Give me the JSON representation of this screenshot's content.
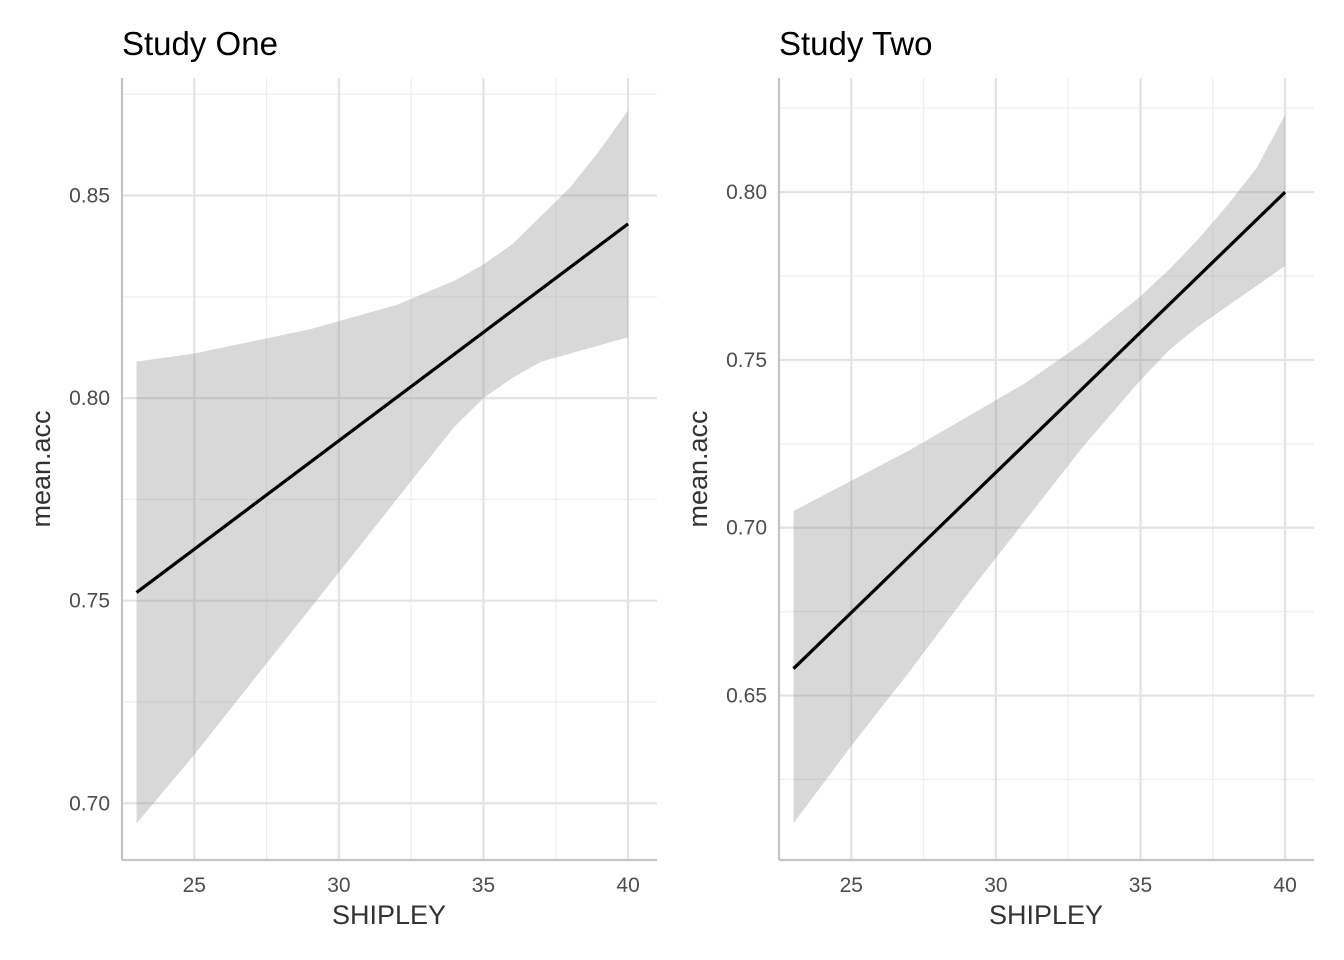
{
  "chart_data": [
    {
      "type": "line",
      "title": "Study One",
      "xlabel": "SHIPLEY",
      "ylabel": "mean.acc",
      "xlim": [
        22.5,
        41
      ],
      "ylim": [
        0.686,
        0.879
      ],
      "x_ticks": [
        25,
        30,
        35,
        40
      ],
      "y_ticks": [
        0.7,
        0.75,
        0.8,
        0.85
      ],
      "x_tick_labels": [
        "25",
        "30",
        "35",
        "40"
      ],
      "y_tick_labels": [
        "0.70",
        "0.75",
        "0.80",
        "0.85"
      ],
      "grid": true,
      "colors": {
        "line": "#000000",
        "ribbon": "#999999"
      },
      "series": [
        {
          "fit": {
            "x": [
              23,
              40
            ],
            "y": [
              0.752,
              0.843
            ]
          },
          "ribbon": {
            "x": [
              23,
              25,
              27,
              29,
              31,
              32,
              33,
              34,
              35,
              36,
              37,
              38,
              39,
              40
            ],
            "upper": [
              0.809,
              0.811,
              0.814,
              0.817,
              0.821,
              0.823,
              0.826,
              0.829,
              0.833,
              0.838,
              0.845,
              0.852,
              0.861,
              0.871
            ],
            "lower": [
              0.695,
              0.712,
              0.73,
              0.748,
              0.766,
              0.775,
              0.784,
              0.793,
              0.8,
              0.805,
              0.809,
              0.811,
              0.813,
              0.815
            ]
          }
        }
      ]
    },
    {
      "type": "line",
      "title": "Study Two",
      "xlabel": "SHIPLEY",
      "ylabel": "mean.acc",
      "xlim": [
        22.5,
        41
      ],
      "ylim": [
        0.601,
        0.834
      ],
      "x_ticks": [
        25,
        30,
        35,
        40
      ],
      "y_ticks": [
        0.65,
        0.7,
        0.75,
        0.8
      ],
      "x_tick_labels": [
        "25",
        "30",
        "35",
        "40"
      ],
      "y_tick_labels": [
        "0.65",
        "0.70",
        "0.75",
        "0.80"
      ],
      "grid": true,
      "colors": {
        "line": "#000000",
        "ribbon": "#999999"
      },
      "series": [
        {
          "fit": {
            "x": [
              23,
              40
            ],
            "y": [
              0.658,
              0.8
            ]
          },
          "ribbon": {
            "x": [
              23,
              25,
              27,
              29,
              31,
              32,
              33,
              34,
              35,
              36,
              37,
              38,
              39,
              40
            ],
            "upper": [
              0.705,
              0.714,
              0.723,
              0.733,
              0.743,
              0.749,
              0.755,
              0.762,
              0.769,
              0.777,
              0.786,
              0.796,
              0.807,
              0.823
            ],
            "lower": [
              0.612,
              0.635,
              0.657,
              0.68,
              0.702,
              0.713,
              0.724,
              0.734,
              0.744,
              0.753,
              0.76,
              0.766,
              0.772,
              0.778
            ]
          }
        }
      ]
    }
  ]
}
